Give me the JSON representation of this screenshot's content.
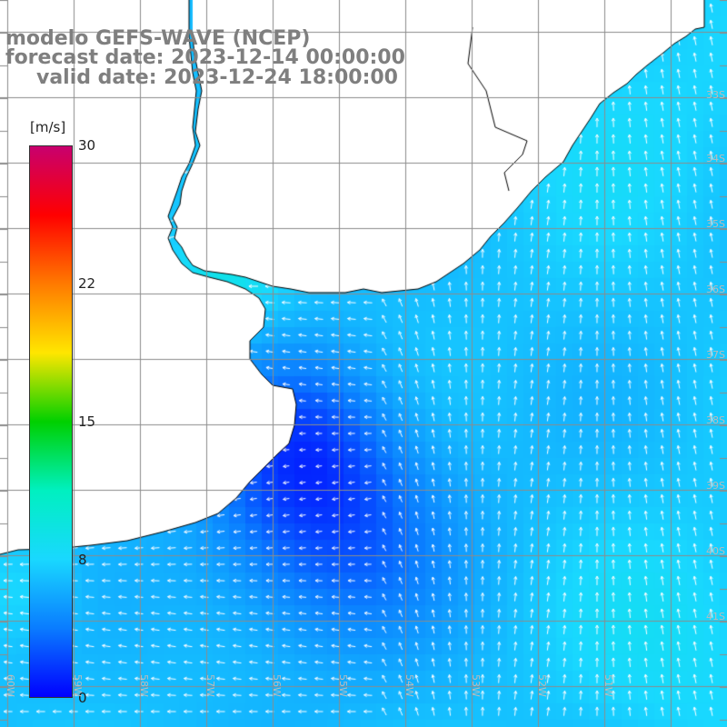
{
  "title": {
    "model": "modelo GEFS-WAVE (NCEP)",
    "forecast": "forecast date: 2023-12-14 00:00:00",
    "valid": "valid date: 2023-12-24 18:00:00"
  },
  "colorbar": {
    "unit": "[m/s]",
    "ticks": [
      "30",
      "22",
      "15",
      "8",
      "0"
    ],
    "tick_values": [
      30,
      22,
      15,
      8,
      0
    ],
    "range": [
      0,
      30
    ],
    "colors": [
      "#0000ff",
      "#0a7cff",
      "#19d8ff",
      "#00f0c0",
      "#00d000",
      "#ffe600",
      "#ff7a00",
      "#ff0000",
      "#c8006e"
    ]
  },
  "lat_labels": [
    "33S",
    "34S",
    "35S",
    "36S",
    "37S",
    "38S",
    "39S",
    "40S",
    "41S"
  ],
  "lon_labels": [
    "60W",
    "59W",
    "58W",
    "57W",
    "56W",
    "55W",
    "54W",
    "53W",
    "52W",
    "51W"
  ],
  "map": {
    "land_color": "#ffffff",
    "coast_color": "#000000",
    "grid_color": "#8c8c8c"
  }
}
